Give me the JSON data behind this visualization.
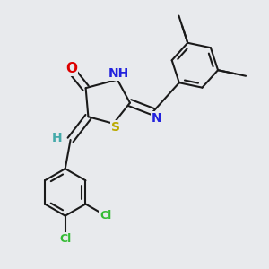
{
  "background_color": "#e8eaed",
  "bond_color": "#1a1a1a",
  "bond_width": 1.5,
  "atom_labels": {
    "O": {
      "color": "#dd0000",
      "fontsize": 11
    },
    "NH": {
      "color": "#2222dd",
      "fontsize": 10
    },
    "N": {
      "color": "#2222dd",
      "fontsize": 10
    },
    "S": {
      "color": "#bbaa00",
      "fontsize": 10
    },
    "H": {
      "color": "#44aaaa",
      "fontsize": 10
    },
    "Cl": {
      "color": "#33bb33",
      "fontsize": 9
    }
  },
  "figsize": [
    3.0,
    3.0
  ],
  "dpi": 100
}
